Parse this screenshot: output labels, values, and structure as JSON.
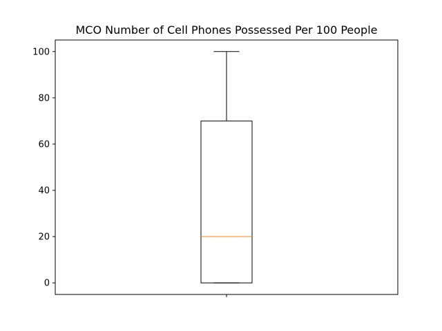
{
  "chart_data": {
    "type": "box",
    "title": "MCO Number of Cell Phones Possessed Per 100 People",
    "xlabel": "",
    "ylabel": "",
    "ylim": [
      -5,
      105
    ],
    "yticks": [
      0,
      20,
      40,
      60,
      80,
      100
    ],
    "x_tick_labels": [
      ""
    ],
    "boxes": [
      {
        "whisker_low": 0,
        "q1": 0,
        "median": 20,
        "q3": 70,
        "whisker_high": 100
      }
    ],
    "colors": {
      "box": "#000000",
      "median": "#ff7f0e",
      "whisker": "#000000"
    },
    "grid": false
  }
}
